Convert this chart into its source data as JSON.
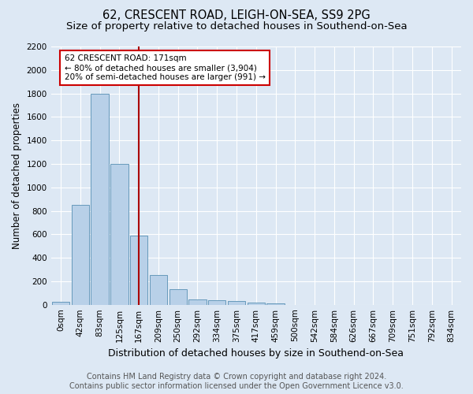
{
  "title1": "62, CRESCENT ROAD, LEIGH-ON-SEA, SS9 2PG",
  "title2": "Size of property relative to detached houses in Southend-on-Sea",
  "xlabel": "Distribution of detached houses by size in Southend-on-Sea",
  "ylabel": "Number of detached properties",
  "bar_labels": [
    "0sqm",
    "42sqm",
    "83sqm",
    "125sqm",
    "167sqm",
    "209sqm",
    "250sqm",
    "292sqm",
    "334sqm",
    "375sqm",
    "417sqm",
    "459sqm",
    "500sqm",
    "542sqm",
    "584sqm",
    "626sqm",
    "667sqm",
    "709sqm",
    "751sqm",
    "792sqm",
    "834sqm"
  ],
  "bar_values": [
    25,
    850,
    1800,
    1200,
    590,
    255,
    130,
    45,
    40,
    30,
    18,
    10,
    0,
    0,
    0,
    0,
    0,
    0,
    0,
    0,
    0
  ],
  "bar_color": "#b8d0e8",
  "bar_edge_color": "#6699bb",
  "vline_x_idx": 4,
  "vline_color": "#aa0000",
  "annotation_text": "62 CRESCENT ROAD: 171sqm\n← 80% of detached houses are smaller (3,904)\n20% of semi-detached houses are larger (991) →",
  "annotation_box_color": "white",
  "annotation_box_edge_color": "#cc0000",
  "ylim": [
    0,
    2200
  ],
  "yticks": [
    0,
    200,
    400,
    600,
    800,
    1000,
    1200,
    1400,
    1600,
    1800,
    2000,
    2200
  ],
  "footer1": "Contains HM Land Registry data © Crown copyright and database right 2024.",
  "footer2": "Contains public sector information licensed under the Open Government Licence v3.0.",
  "bg_color": "#dde8f4",
  "plot_bg_color": "#dde8f4",
  "grid_color": "white",
  "title1_fontsize": 10.5,
  "title2_fontsize": 9.5,
  "xlabel_fontsize": 9,
  "ylabel_fontsize": 8.5,
  "tick_fontsize": 7.5,
  "footer_fontsize": 7,
  "annotation_fontsize": 7.5
}
